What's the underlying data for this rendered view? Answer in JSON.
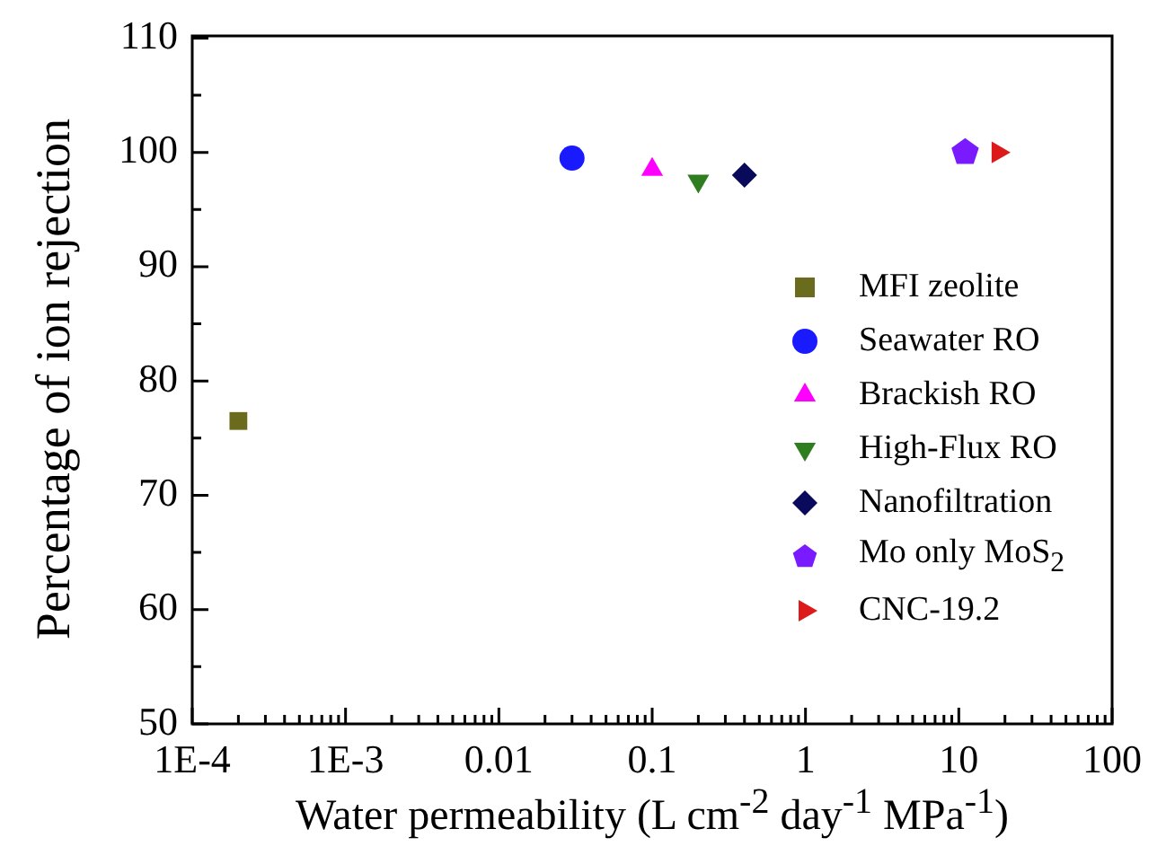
{
  "chart_data": {
    "type": "scatter",
    "xlabel": "Water permeability (L cm$^{-2}$ day$^{-1}$ MPa$^{-1}$)",
    "ylabel": "Percentage of ion rejection",
    "log": "x",
    "legend": "bottom right",
    "grid": false,
    "xlim": [
      0.0001,
      100
    ],
    "ylim": [
      50,
      110
    ],
    "xticks": [
      {
        "value": 0.0001,
        "label": "1E-4"
      },
      {
        "value": 0.0002,
        "label": null
      },
      {
        "value": 0.0003,
        "label": null
      },
      {
        "value": 0.0004,
        "label": null
      },
      {
        "value": 0.0005,
        "label": null
      },
      {
        "value": 0.0006,
        "label": null
      },
      {
        "value": 0.0007,
        "label": null
      },
      {
        "value": 0.0008,
        "label": null
      },
      {
        "value": 0.0009,
        "label": null
      },
      {
        "value": 0.001,
        "label": "1E-3"
      },
      {
        "value": 0.002,
        "label": null
      },
      {
        "value": 0.003,
        "label": null
      },
      {
        "value": 0.004,
        "label": null
      },
      {
        "value": 0.005,
        "label": null
      },
      {
        "value": 0.006,
        "label": null
      },
      {
        "value": 0.007,
        "label": null
      },
      {
        "value": 0.008,
        "label": null
      },
      {
        "value": 0.009,
        "label": null
      },
      0.01,
      {
        "value": 0.02,
        "label": null
      },
      {
        "value": 0.03,
        "label": null
      },
      {
        "value": 0.04,
        "label": null
      },
      {
        "value": 0.05,
        "label": null
      },
      {
        "value": 0.06,
        "label": null
      },
      {
        "value": 0.07,
        "label": null
      },
      {
        "value": 0.08,
        "label": null
      },
      {
        "value": 0.09,
        "label": null
      },
      0.1,
      {
        "value": 0.2,
        "label": null
      },
      {
        "value": 0.3,
        "label": null
      },
      {
        "value": 0.4,
        "label": null
      },
      {
        "value": 0.5,
        "label": null
      },
      {
        "value": 0.6,
        "label": null
      },
      {
        "value": 0.7,
        "label": null
      },
      {
        "value": 0.8,
        "label": null
      },
      {
        "value": 0.9,
        "label": null
      },
      1,
      {
        "value": 2,
        "label": null
      },
      {
        "value": 3,
        "label": null
      },
      {
        "value": 4,
        "label": null
      },
      {
        "value": 5,
        "label": null
      },
      {
        "value": 6,
        "label": null
      },
      {
        "value": 7,
        "label": null
      },
      {
        "value": 8,
        "label": null
      },
      {
        "value": 9,
        "label": null
      },
      10,
      {
        "value": 20,
        "label": null
      },
      {
        "value": 30,
        "label": null
      },
      {
        "value": 40,
        "label": null
      },
      {
        "value": 50,
        "label": null
      },
      {
        "value": 60,
        "label": null
      },
      {
        "value": 70,
        "label": null
      },
      {
        "value": 80,
        "label": null
      },
      {
        "value": 90,
        "label": null
      },
      100
    ],
    "yticks": [
      50,
      {
        "value": 55,
        "label": null
      },
      60,
      {
        "value": 65,
        "label": null
      },
      70,
      {
        "value": 75,
        "label": null
      },
      80,
      {
        "value": 85,
        "label": null
      },
      90,
      {
        "value": 95,
        "label": null
      },
      100,
      {
        "value": 105,
        "label": null
      },
      110
    ],
    "series": [
      {
        "name": "MFI zeolite",
        "color": "#6b6b1e",
        "marker": "square",
        "x": [
          0.0002
        ],
        "values": [
          76.5
        ]
      },
      {
        "name": "Seawater RO",
        "color": "#1a1aff",
        "marker": "circle",
        "x": [
          0.03
        ],
        "values": [
          99.5
        ]
      },
      {
        "name": "Brackish RO",
        "color": "#ff00ff",
        "marker": "triangle",
        "x": [
          0.1
        ],
        "values": [
          98.5
        ]
      },
      {
        "name": "High-Flux RO",
        "color": "#2e7d1e",
        "marker": "triangle-down",
        "x": [
          0.2
        ],
        "values": [
          97.5
        ]
      },
      {
        "name": "Nanofiltration",
        "color": "#0a0a5a",
        "marker": "diamond",
        "x": [
          0.4
        ],
        "values": [
          98
        ]
      },
      {
        "name": "Mo only MoS$_{2}$",
        "color": "#7a1aff",
        "x": [
          11
        ],
        "values": [
          100
        ]
      },
      {
        "name": "CNC-19.2",
        "color": "#dd1a1a",
        "marker": "triangle-right",
        "x": [
          18
        ],
        "values": [
          100
        ]
      }
    ]
  }
}
